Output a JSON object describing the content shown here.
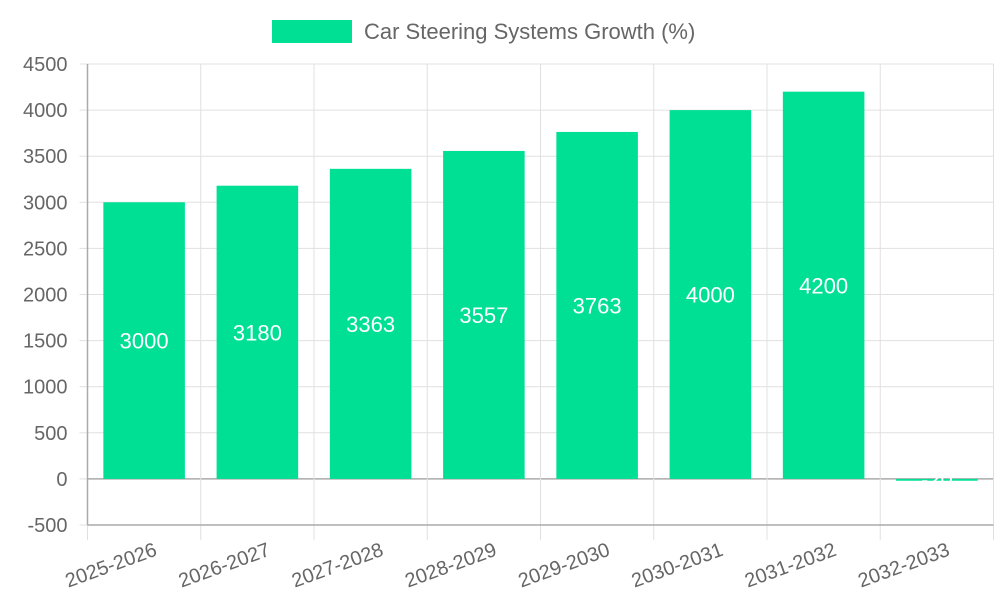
{
  "colors": {
    "bar": "#00E094",
    "grid": "#e0e0e0",
    "axis": "#aaaaaa",
    "zero_line": "#aaaaaa",
    "text": "#666666",
    "label": "#ffffff"
  },
  "chart_data": {
    "type": "bar",
    "legend": {
      "position": "top-center",
      "entries": [
        "Car Steering Systems Growth (%)"
      ]
    },
    "categories": [
      "2025-2026",
      "2026-2027",
      "2027-2028",
      "2028-2029",
      "2029-2030",
      "2030-2031",
      "2031-2032",
      "2032-2033"
    ],
    "series": [
      {
        "name": "Car Steering Systems Growth (%)",
        "values": [
          3000,
          3180,
          3363,
          3557,
          3763,
          4000,
          4200,
          -20
        ]
      }
    ],
    "data_labels": [
      "3000",
      "3180",
      "3363",
      "3557",
      "3763",
      "4000",
      "4200",
      "-20"
    ],
    "ylim": [
      -500,
      4500
    ],
    "yticks": [
      4500,
      4000,
      3500,
      3000,
      2500,
      2000,
      1500,
      1000,
      500,
      0,
      -500
    ],
    "ytick_labels": [
      "4500",
      "4000",
      "3500",
      "3000",
      "2500",
      "2000",
      "1500",
      "1000",
      "500",
      "0",
      "-500"
    ],
    "grid": true,
    "title": "",
    "xlabel": "",
    "ylabel": ""
  }
}
